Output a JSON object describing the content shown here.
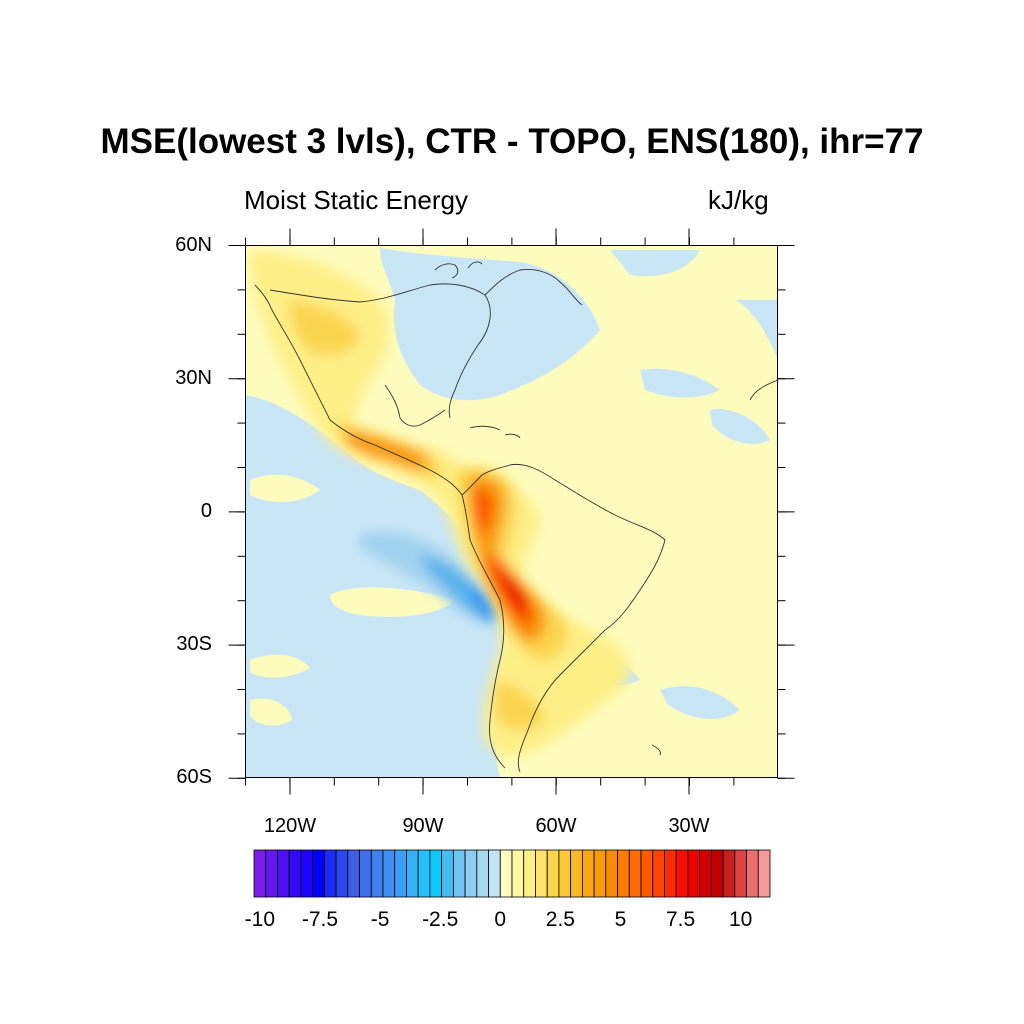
{
  "title": "MSE(lowest 3 lvls), CTR - TOPO, ENS(180), ihr=77",
  "subtitle_left": "Moist Static Energy",
  "subtitle_right": "kJ/kg",
  "lat_labels": [
    "60N",
    "30N",
    "0",
    "30S",
    "60S"
  ],
  "lon_labels": [
    "120W",
    "90W",
    "60W",
    "30W"
  ],
  "colorbar": {
    "labels": [
      "-10",
      "-7.5",
      "-5",
      "-2.5",
      "0",
      "2.5",
      "5",
      "7.5",
      "10"
    ],
    "colors": [
      "#7d1dea",
      "#6416ef",
      "#4d0ff3",
      "#3409f8",
      "#1f03fc",
      "#0000ff",
      "#1c2cf2",
      "#2d45eb",
      "#3d5fe6",
      "#3f6fe9",
      "#3f80ee",
      "#3d90f1",
      "#3aa0f5",
      "#33b2f9",
      "#20c0fb",
      "#0ec8fc",
      "#4bbcf0",
      "#72c4f0",
      "#8fccf0",
      "#a8d7f0",
      "#c4e3f4",
      "#fefcbd",
      "#fef7a3",
      "#feef87",
      "#fde36a",
      "#fbd54f",
      "#fac838",
      "#f9ba25",
      "#f9a814",
      "#f99a0a",
      "#fa8b05",
      "#fb7c03",
      "#fc6c02",
      "#fc5a00",
      "#fd4400",
      "#fe2a00",
      "#fd0a00",
      "#ea0200",
      "#d40000",
      "#c00000",
      "#c81f1f",
      "#dc4444",
      "#ec6e6e",
      "#f79a9a"
    ]
  },
  "map_colors": {
    "neg_weak": "#c9e6f6",
    "neg_mid": "#a0d2f0",
    "neg_strong": "#58b2ec",
    "neg_max": "#2a8ff0",
    "pos_weak": "#fefcbd",
    "pos_light": "#feef87",
    "pos_mid": "#fbd54f",
    "pos_orange": "#f99a0a",
    "pos_red": "#fc5a00",
    "pos_max": "#e80000",
    "coastline": "#333333"
  }
}
